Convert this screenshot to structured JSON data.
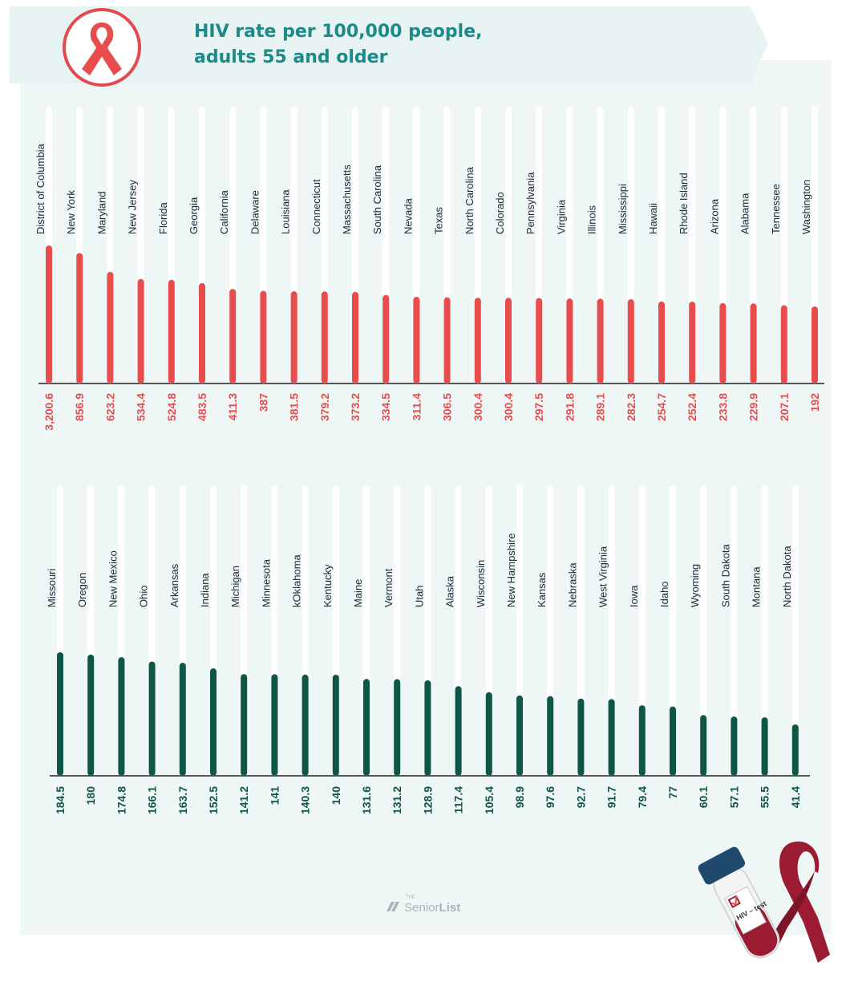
{
  "title": {
    "line1": "HIV rate per 100,000 people,",
    "line2": "adults 55 and older"
  },
  "icons": {
    "badge": "red-ribbon-icon",
    "tube": "hiv-test-tube-icon",
    "ribbon_large": "ribbon-icon",
    "logo_icon": "seniorlist-logo-icon"
  },
  "logo": {
    "the": "THE",
    "senior": "Senior",
    "list": "List"
  },
  "tube_label": "HIV – test",
  "colors": {
    "top_series": "#e84d4e",
    "bottom_series": "#0f5646",
    "title": "#1d8a8a",
    "panel": "#eef6f6",
    "ribbon_dark": "#9a1b32"
  },
  "chart_data": [
    {
      "type": "bar",
      "categories": [
        "District of Columbia",
        "New York",
        "Maryland",
        "New Jersey",
        "Florida",
        "Georgia",
        "California",
        "Delaware",
        "Louisiana",
        "Connecticut",
        "Massachusetts",
        "South Carolina",
        "Nevada",
        "Texas",
        "North Carolina",
        "Colorado",
        "Pennsylvania",
        "Virginia",
        "Illinois",
        "Mississippi",
        "Hawaii",
        "Rhode Island",
        "Arizona",
        "Alabama",
        "Tennessee",
        "Washington"
      ],
      "values": [
        3200.6,
        856.9,
        623.2,
        534.4,
        524.8,
        483.5,
        411.3,
        387,
        381.5,
        379.2,
        373.2,
        334.5,
        311.4,
        306.5,
        300.4,
        300.4,
        297.5,
        291.8,
        289.1,
        282.3,
        254.7,
        252.4,
        233.8,
        229.9,
        207.1,
        192
      ],
      "value_labels": [
        "3,200.6",
        "856.9",
        "623.2",
        "534.4",
        "524.8",
        "483.5",
        "411.3",
        "387",
        "381.5",
        "379.2",
        "373.2",
        "334.5",
        "311.4",
        "306.5",
        "300.4",
        "300.4",
        "297.5",
        "291.8",
        "289.1",
        "282.3",
        "254.7",
        "252.4",
        "233.8",
        "229.9",
        "207.1",
        "192"
      ],
      "title": "",
      "xlabel": "",
      "ylabel": "",
      "grid": false
    },
    {
      "type": "bar",
      "categories": [
        "Missouri",
        "Oregon",
        "New Mexico",
        "Ohio",
        "Arkansas",
        "Indiana",
        "Michigan",
        "Minnesota",
        "kOklahoma",
        "Kentucky",
        "Maine",
        "Vermont",
        "Utah",
        "Alaska",
        "Wisconsin",
        "New Hampshire",
        "Kansas",
        "Nebraska",
        "West Virginia",
        "Iowa",
        "Idaho",
        "Wyoming",
        "South Dakota",
        "Montana",
        "North Dakota"
      ],
      "values": [
        184.5,
        180,
        174.8,
        166.1,
        163.7,
        152.5,
        141.2,
        141,
        140.3,
        140,
        131.6,
        131.2,
        128.9,
        117.4,
        105.4,
        98.9,
        97.6,
        92.7,
        91.7,
        79.4,
        77,
        60.1,
        57.1,
        55.5,
        41.4
      ],
      "value_labels": [
        "184.5",
        "180",
        "174.8",
        "166.1",
        "163.7",
        "152.5",
        "141.2",
        "141",
        "140.3",
        "140",
        "131.6",
        "131.2",
        "128.9",
        "117.4",
        "105.4",
        "98.9",
        "97.6",
        "92.7",
        "91.7",
        "79.4",
        "77",
        "60.1",
        "57.1",
        "55.5",
        "41.4"
      ],
      "title": "",
      "xlabel": "",
      "ylabel": "",
      "grid": false
    }
  ]
}
